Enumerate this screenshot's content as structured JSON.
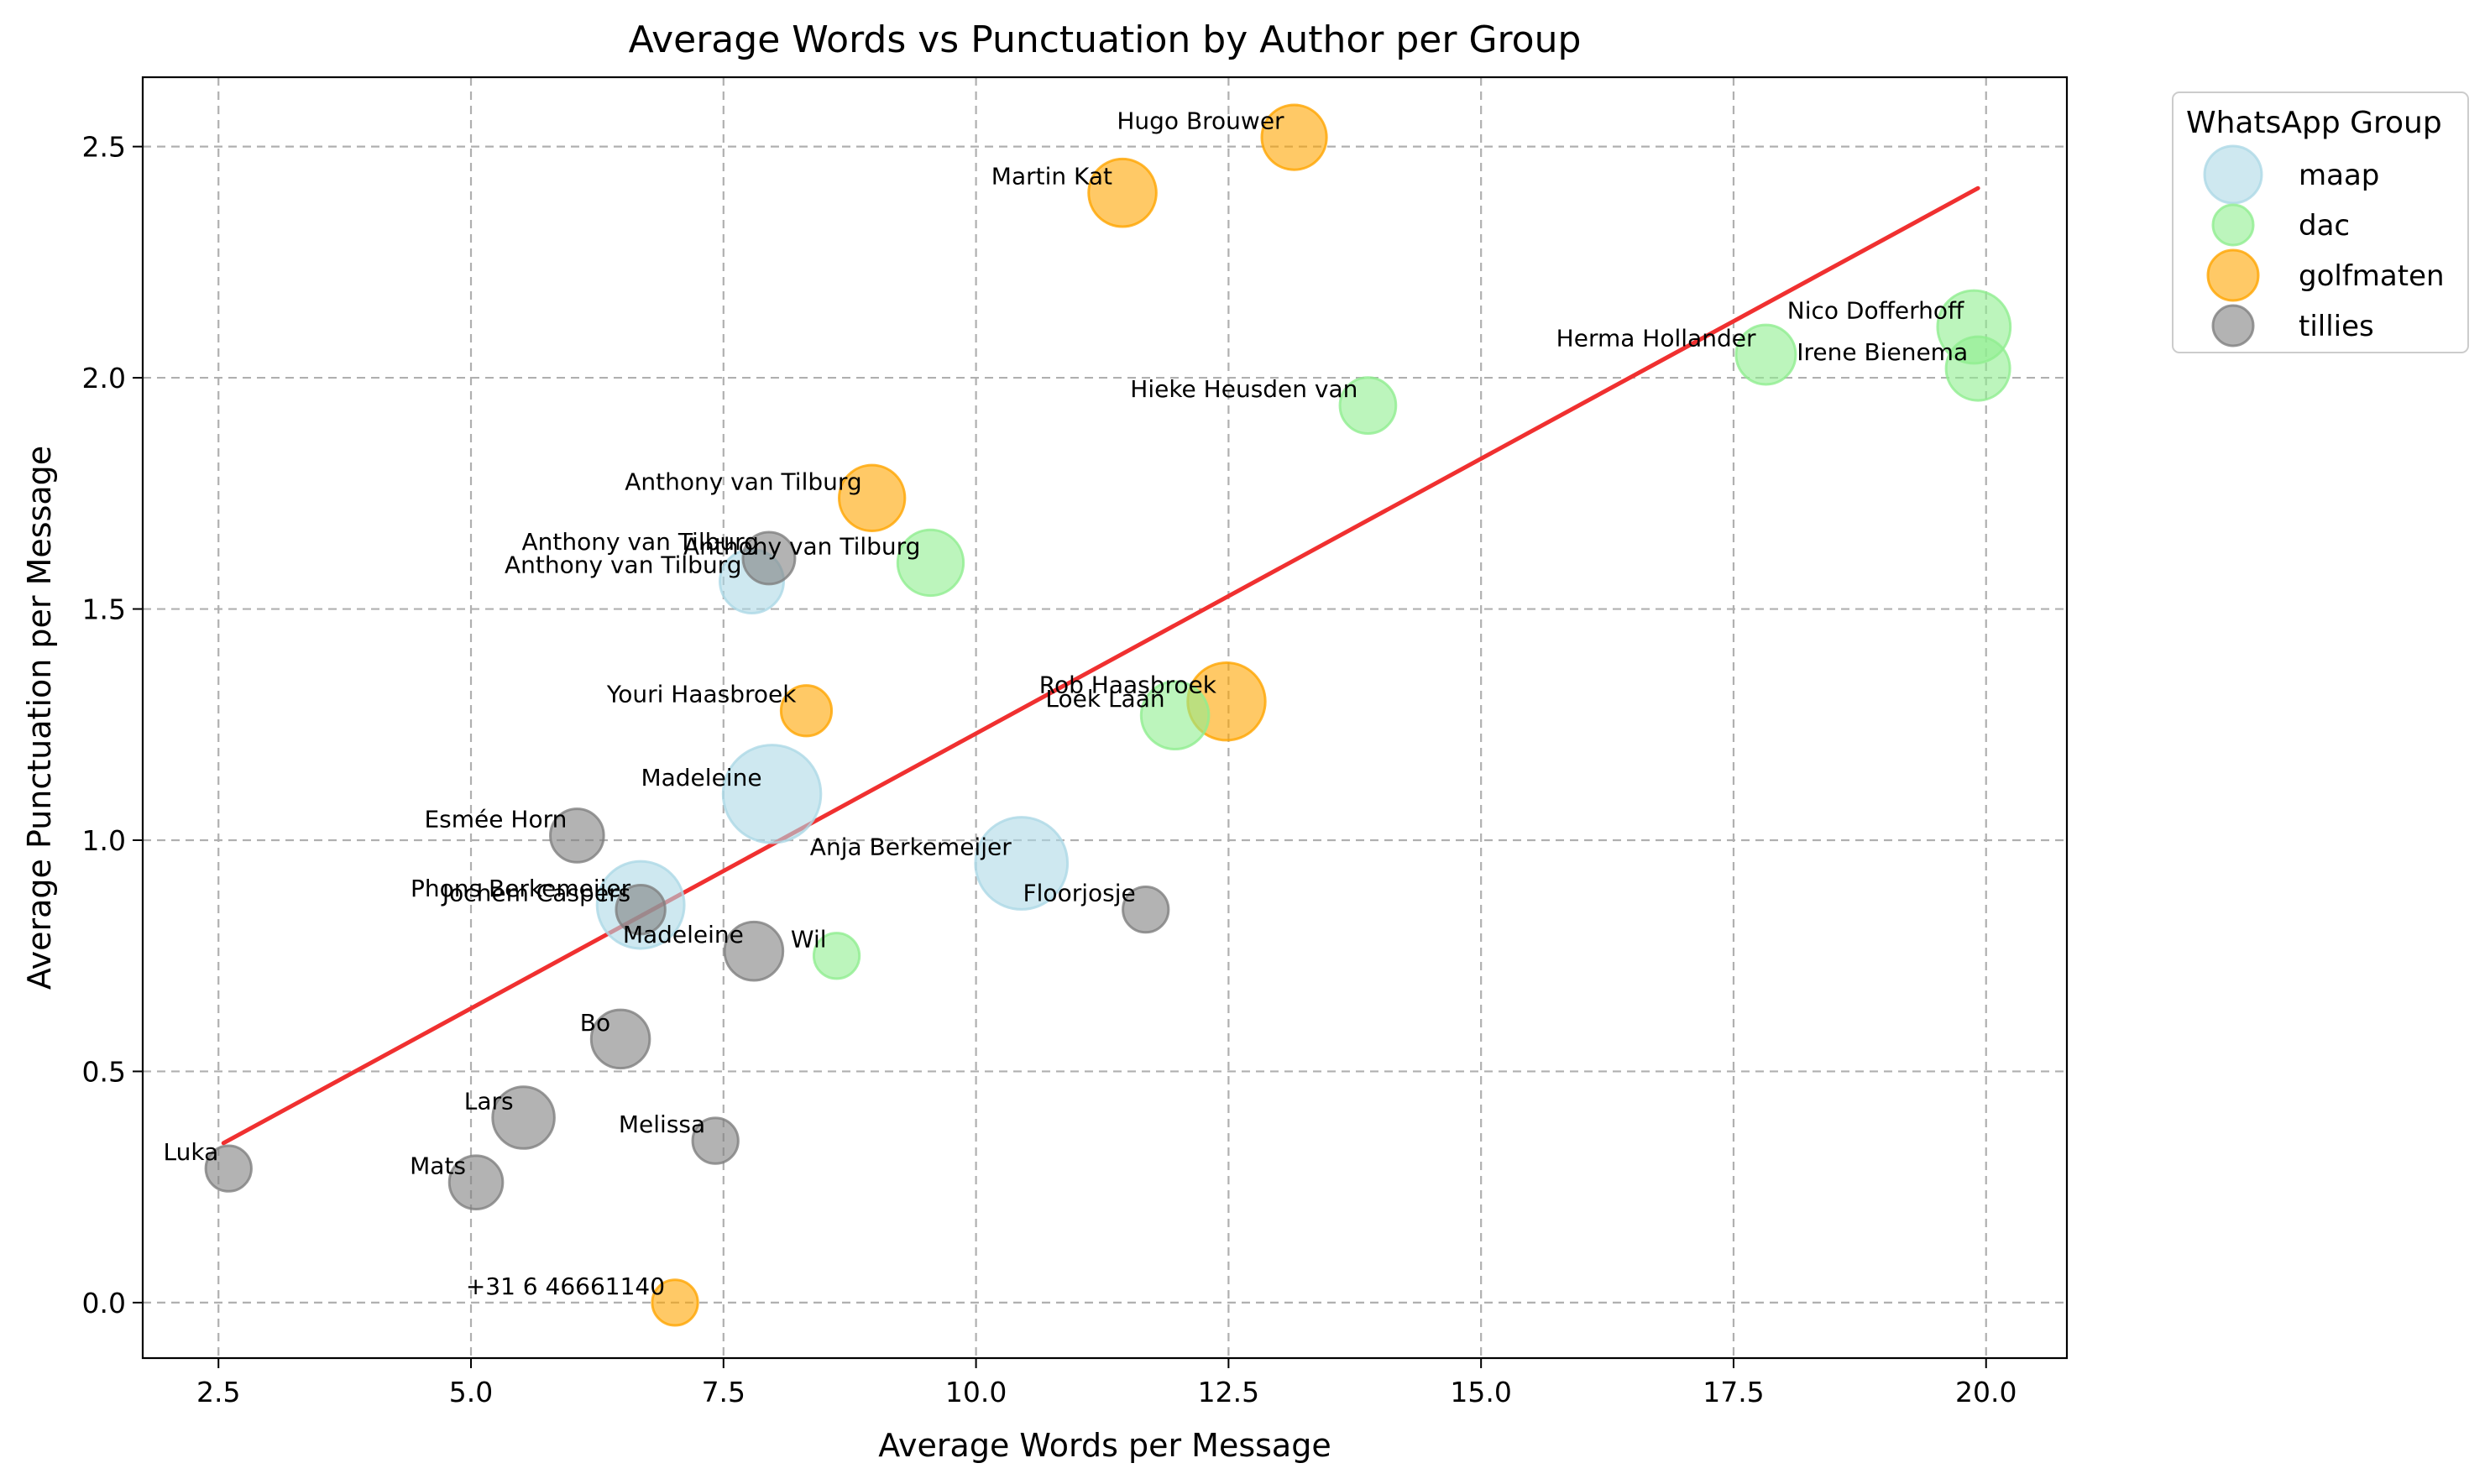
{
  "chart_data": {
    "type": "scatter",
    "title": "Average Words vs Punctuation by Author per Group",
    "xlabel": "Average Words per Message",
    "ylabel": "Average Punctuation per Message",
    "xlim": [
      1.75,
      20.8
    ],
    "ylim": [
      -0.12,
      2.65
    ],
    "xticks": [
      2.5,
      5.0,
      7.5,
      10.0,
      12.5,
      15.0,
      17.5,
      20.0
    ],
    "xtick_labels": [
      "2.5",
      "5.0",
      "7.5",
      "10.0",
      "12.5",
      "15.0",
      "17.5",
      "20.0"
    ],
    "yticks": [
      0.0,
      0.5,
      1.0,
      1.5,
      2.0,
      2.5
    ],
    "ytick_labels": [
      "0.0",
      "0.5",
      "1.0",
      "1.5",
      "2.0",
      "2.5"
    ],
    "grid": true,
    "legend": {
      "title": "WhatsApp Group",
      "placement": "outside-top-right"
    },
    "trendline": {
      "color": "#f03030",
      "x": [
        2.55,
        19.92
      ],
      "y": [
        0.345,
        2.41
      ]
    },
    "series": [
      {
        "name": "maap",
        "color": "#add8e6",
        "points": [
          {
            "label": "Madeleine",
            "x": 7.98,
            "y": 1.1,
            "size": 3.4
          },
          {
            "label": "Anja Berkemeijer",
            "x": 10.45,
            "y": 0.95,
            "size": 2.9
          },
          {
            "label": "Phons Berkemeijer",
            "x": 6.68,
            "y": 0.86,
            "size": 2.5
          },
          {
            "label": "Anthony van Tilburg",
            "x": 7.78,
            "y": 1.56,
            "size": 1.0
          }
        ]
      },
      {
        "name": "dac",
        "color": "#90ee90",
        "points": [
          {
            "label": "Nico Dofferhoff",
            "x": 19.88,
            "y": 2.11,
            "size": 1.5
          },
          {
            "label": "Irene Bienema",
            "x": 19.92,
            "y": 2.02,
            "size": 1.0
          },
          {
            "label": "Herma Hollander",
            "x": 17.82,
            "y": 2.05,
            "size": 0.8
          },
          {
            "label": "Hieke Heusden van",
            "x": 13.88,
            "y": 1.94,
            "size": 0.65
          },
          {
            "label": "Anthony van Tilburg",
            "x": 9.55,
            "y": 1.6,
            "size": 1.1
          },
          {
            "label": "Loek Laan",
            "x": 11.97,
            "y": 1.27,
            "size": 1.2
          },
          {
            "label": "Wil",
            "x": 8.62,
            "y": 0.75,
            "size": 0.3
          }
        ]
      },
      {
        "name": "golfmaten",
        "color": "#ffa500",
        "points": [
          {
            "label": "Hugo Brouwer",
            "x": 13.15,
            "y": 2.52,
            "size": 1.05
          },
          {
            "label": "Martin Kat",
            "x": 11.45,
            "y": 2.4,
            "size": 1.2
          },
          {
            "label": "Anthony van Tilburg",
            "x": 8.97,
            "y": 1.74,
            "size": 1.1
          },
          {
            "label": "Rob Haasbroek",
            "x": 12.48,
            "y": 1.3,
            "size": 1.8
          },
          {
            "label": "Youri Haasbroek",
            "x": 8.32,
            "y": 1.28,
            "size": 0.45
          },
          {
            "label": "⁨+31 6 46661140⁩",
            "x": 7.02,
            "y": 0.0,
            "size": 0.3
          }
        ]
      },
      {
        "name": "tillies",
        "color": "#808080",
        "points": [
          {
            "label": "Anthony van Tilburg",
            "x": 7.95,
            "y": 1.61,
            "size": 0.5
          },
          {
            "label": "Esmée Horn",
            "x": 6.05,
            "y": 1.01,
            "size": 0.55
          },
          {
            "label": "Jochem Caspers",
            "x": 6.68,
            "y": 0.85,
            "size": 0.4
          },
          {
            "label": "Madeleine",
            "x": 7.8,
            "y": 0.76,
            "size": 0.75
          },
          {
            "label": "Floorjosje",
            "x": 11.68,
            "y": 0.85,
            "size": 0.3
          },
          {
            "label": "Bo",
            "x": 6.48,
            "y": 0.57,
            "size": 0.75
          },
          {
            "label": "Lars",
            "x": 5.52,
            "y": 0.4,
            "size": 0.9
          },
          {
            "label": "Melissa",
            "x": 7.42,
            "y": 0.35,
            "size": 0.3
          },
          {
            "label": "Mats",
            "x": 5.05,
            "y": 0.26,
            "size": 0.55
          },
          {
            "label": "Luka",
            "x": 2.6,
            "y": 0.29,
            "size": 0.3
          }
        ]
      }
    ]
  }
}
